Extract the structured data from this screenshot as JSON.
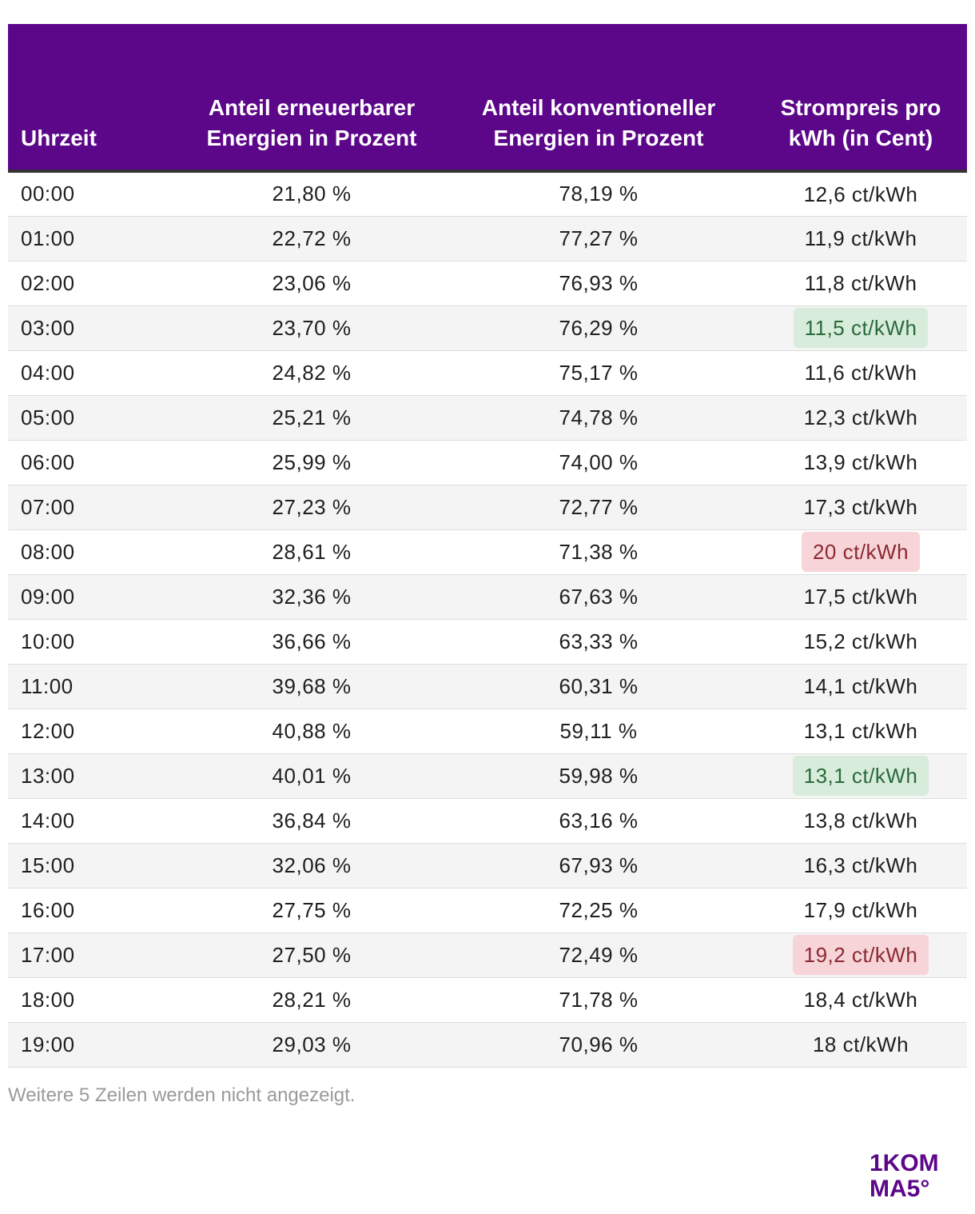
{
  "table": {
    "headers": [
      "Uhrzeit",
      "Anteil erneuerbarer Energien in Prozent",
      "Anteil konventioneller Energien in Prozent",
      "Strompreis pro kWh (in Cent)"
    ],
    "rows": [
      {
        "time": "00:00",
        "renewable": "21,80 %",
        "conventional": "78,19 %",
        "price": "12,6 ct/kWh",
        "highlight": "none"
      },
      {
        "time": "01:00",
        "renewable": "22,72 %",
        "conventional": "77,27 %",
        "price": "11,9 ct/kWh",
        "highlight": "none"
      },
      {
        "time": "02:00",
        "renewable": "23,06 %",
        "conventional": "76,93 %",
        "price": "11,8 ct/kWh",
        "highlight": "none"
      },
      {
        "time": "03:00",
        "renewable": "23,70 %",
        "conventional": "76,29 %",
        "price": "11,5 ct/kWh",
        "highlight": "low"
      },
      {
        "time": "04:00",
        "renewable": "24,82 %",
        "conventional": "75,17 %",
        "price": "11,6 ct/kWh",
        "highlight": "none"
      },
      {
        "time": "05:00",
        "renewable": "25,21 %",
        "conventional": "74,78 %",
        "price": "12,3 ct/kWh",
        "highlight": "none"
      },
      {
        "time": "06:00",
        "renewable": "25,99 %",
        "conventional": "74,00 %",
        "price": "13,9 ct/kWh",
        "highlight": "none"
      },
      {
        "time": "07:00",
        "renewable": "27,23 %",
        "conventional": "72,77 %",
        "price": "17,3 ct/kWh",
        "highlight": "none"
      },
      {
        "time": "08:00",
        "renewable": "28,61 %",
        "conventional": "71,38 %",
        "price": "20 ct/kWh",
        "highlight": "high"
      },
      {
        "time": "09:00",
        "renewable": "32,36 %",
        "conventional": "67,63 %",
        "price": "17,5 ct/kWh",
        "highlight": "none"
      },
      {
        "time": "10:00",
        "renewable": "36,66 %",
        "conventional": "63,33 %",
        "price": "15,2 ct/kWh",
        "highlight": "none"
      },
      {
        "time": "11:00",
        "renewable": "39,68 %",
        "conventional": "60,31 %",
        "price": "14,1 ct/kWh",
        "highlight": "none"
      },
      {
        "time": "12:00",
        "renewable": "40,88 %",
        "conventional": "59,11 %",
        "price": "13,1 ct/kWh",
        "highlight": "none"
      },
      {
        "time": "13:00",
        "renewable": "40,01 %",
        "conventional": "59,98 %",
        "price": "13,1 ct/kWh",
        "highlight": "low"
      },
      {
        "time": "14:00",
        "renewable": "36,84 %",
        "conventional": "63,16 %",
        "price": "13,8 ct/kWh",
        "highlight": "none"
      },
      {
        "time": "15:00",
        "renewable": "32,06 %",
        "conventional": "67,93 %",
        "price": "16,3 ct/kWh",
        "highlight": "none"
      },
      {
        "time": "16:00",
        "renewable": "27,75 %",
        "conventional": "72,25 %",
        "price": "17,9 ct/kWh",
        "highlight": "none"
      },
      {
        "time": "17:00",
        "renewable": "27,50 %",
        "conventional": "72,49 %",
        "price": "19,2 ct/kWh",
        "highlight": "high"
      },
      {
        "time": "18:00",
        "renewable": "28,21 %",
        "conventional": "71,78 %",
        "price": "18,4 ct/kWh",
        "highlight": "none"
      },
      {
        "time": "19:00",
        "renewable": "29,03 %",
        "conventional": "70,96 %",
        "price": "18 ct/kWh",
        "highlight": "none"
      }
    ]
  },
  "note": "Weitere 5 Zeilen werden nicht angezeigt.",
  "logo": {
    "line1": "1KOM",
    "line2": "MA5°",
    "color": "#5c0689"
  },
  "colors": {
    "header_bg": "#5c0689",
    "low_bg": "#d8ecdc",
    "high_bg": "#f6d4d7"
  }
}
